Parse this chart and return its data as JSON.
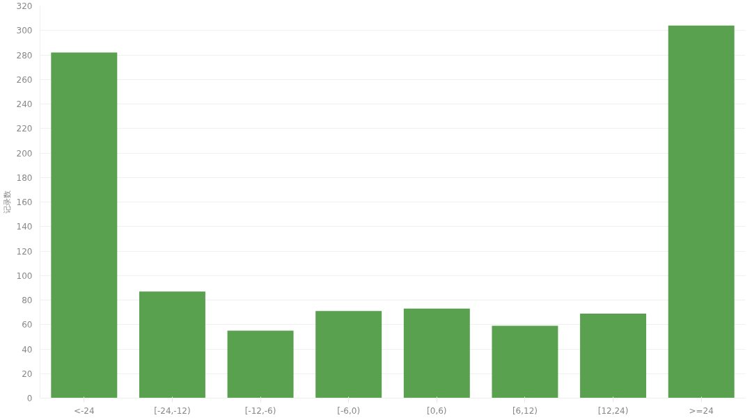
{
  "chart_data": {
    "type": "bar",
    "ylabel": "记录数",
    "categories": [
      "<-24",
      "[-24,-12)",
      "[-12,-6)",
      "[-6,0)",
      "[0,6)",
      "[6,12)",
      "[12,24)",
      ">=24"
    ],
    "values": [
      282,
      87,
      55,
      71,
      73,
      59,
      69,
      304
    ],
    "color": "#59a14f",
    "ylim": [
      0,
      320
    ],
    "yticks": [
      0,
      20,
      40,
      60,
      80,
      100,
      120,
      140,
      160,
      180,
      200,
      220,
      240,
      260,
      280,
      300,
      320
    ],
    "grid": "y"
  }
}
